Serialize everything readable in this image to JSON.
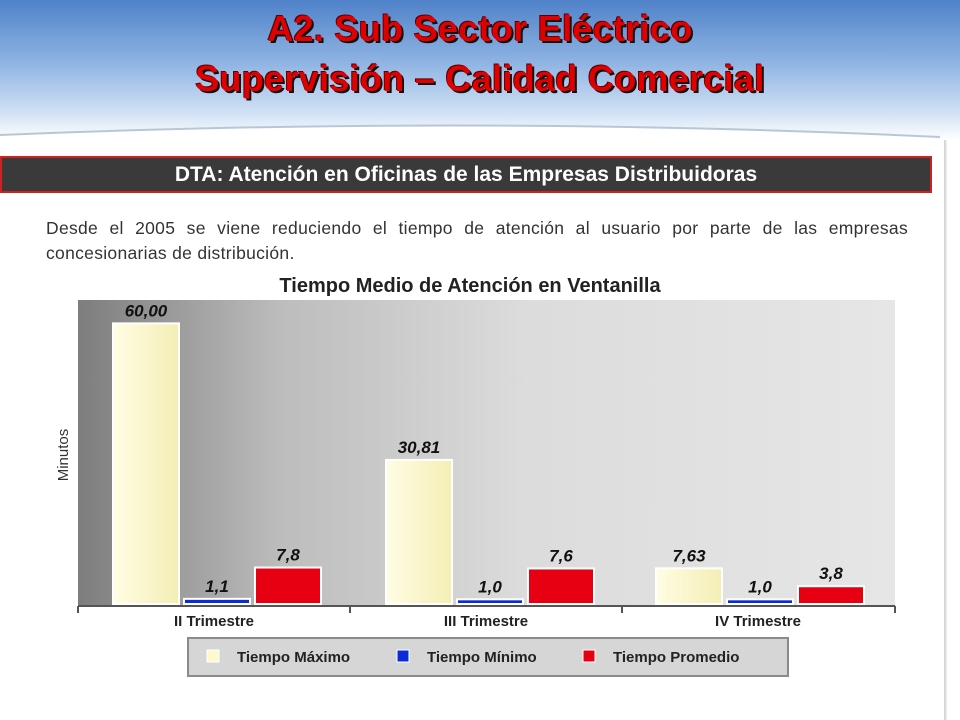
{
  "slide": {
    "title_line1": "A2. Sub Sector Eléctrico",
    "title_line2": "Supervisión – Calidad Comercial",
    "section_heading": "DTA: Atención en Oficinas de las Empresas Distribuidoras",
    "body_text": "Desde el 2005 se viene reduciendo el tiempo de atención al usuario por parte de las empresas concesionarias de distribución."
  },
  "colors": {
    "title": "#e00000",
    "section_bar": "#3a3a3a",
    "max_series": "#fffacd",
    "min_series": "#0b2bd6",
    "avg_series": "#e60012"
  },
  "chart_data": {
    "type": "bar",
    "title": "Tiempo Medio de Atención en Ventanilla",
    "ylabel": "Minutos",
    "categories": [
      "II Trimestre",
      "III Trimestre",
      "IV Trimestre"
    ],
    "series": [
      {
        "name": "Tiempo Máximo",
        "values": [
          60.0,
          30.81,
          7.63
        ],
        "labels": [
          "60,00",
          "30,81",
          "7,63"
        ],
        "color": "#fffacd"
      },
      {
        "name": "Tiempo Mínimo",
        "values": [
          1.1,
          1.0,
          1.0
        ],
        "labels": [
          "1,1",
          "1,0",
          "1,0"
        ],
        "color": "#0b2bd6"
      },
      {
        "name": "Tiempo Promedio",
        "values": [
          7.8,
          7.6,
          3.8
        ],
        "labels": [
          "7,8",
          "7,6",
          "3,8"
        ],
        "color": "#e60012"
      }
    ],
    "ylim": [
      0,
      65
    ],
    "grid": false,
    "legend_position": "bottom"
  }
}
